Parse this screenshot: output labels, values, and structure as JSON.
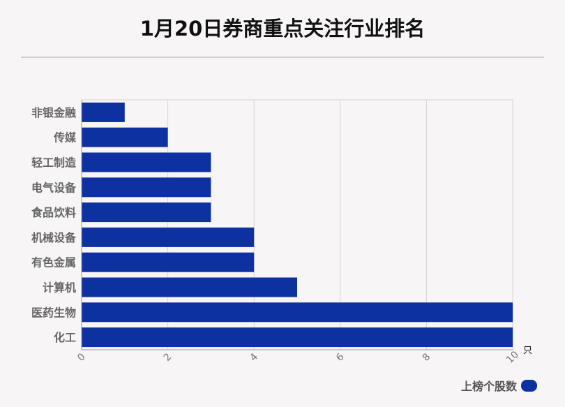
{
  "title": "1月20日券商重点关注行业排名",
  "chart_data": {
    "type": "bar",
    "orientation": "horizontal",
    "title": "1月20日券商重点关注行业排名",
    "categories": [
      "非银金融",
      "传媒",
      "轻工制造",
      "电气设备",
      "食品饮料",
      "机械设备",
      "有色金属",
      "计算机",
      "医药生物",
      "化工"
    ],
    "series": [
      {
        "name": "上榜个股数",
        "values": [
          1,
          2,
          3,
          3,
          3,
          4,
          4,
          5,
          10,
          10
        ]
      }
    ],
    "xticks": [
      "0",
      "2",
      "4",
      "6",
      "8",
      "10"
    ],
    "xlim": [
      0,
      10
    ],
    "xunit": "只",
    "grid": true,
    "legend_position": "bottom-right",
    "colors": {
      "bar": "#0d31a1"
    }
  }
}
